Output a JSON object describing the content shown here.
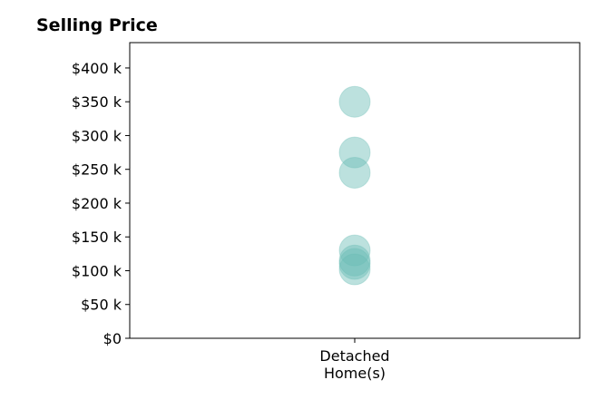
{
  "chart_data": {
    "type": "scatter",
    "title": "Selling Price",
    "xlabel": "",
    "ylabel": "",
    "categories": [
      "Detached Home(s)"
    ],
    "category_label_lines": [
      "Detached",
      "Home(s)"
    ],
    "ylim": [
      0,
      437500
    ],
    "y_ticks": [
      0,
      50000,
      100000,
      150000,
      200000,
      250000,
      300000,
      350000,
      400000
    ],
    "y_tick_labels": [
      "$0",
      "$50 k",
      "$100 k",
      "$150 k",
      "$200 k",
      "$250 k",
      "$300 k",
      "$350 k",
      "$400 k"
    ],
    "grid": false,
    "legend": "none",
    "series": [
      {
        "category": "Detached Home(s)",
        "values": [
          350000,
          275000,
          245000,
          130000,
          115000,
          110000,
          102000
        ],
        "color": "#6bbdb5"
      }
    ]
  }
}
